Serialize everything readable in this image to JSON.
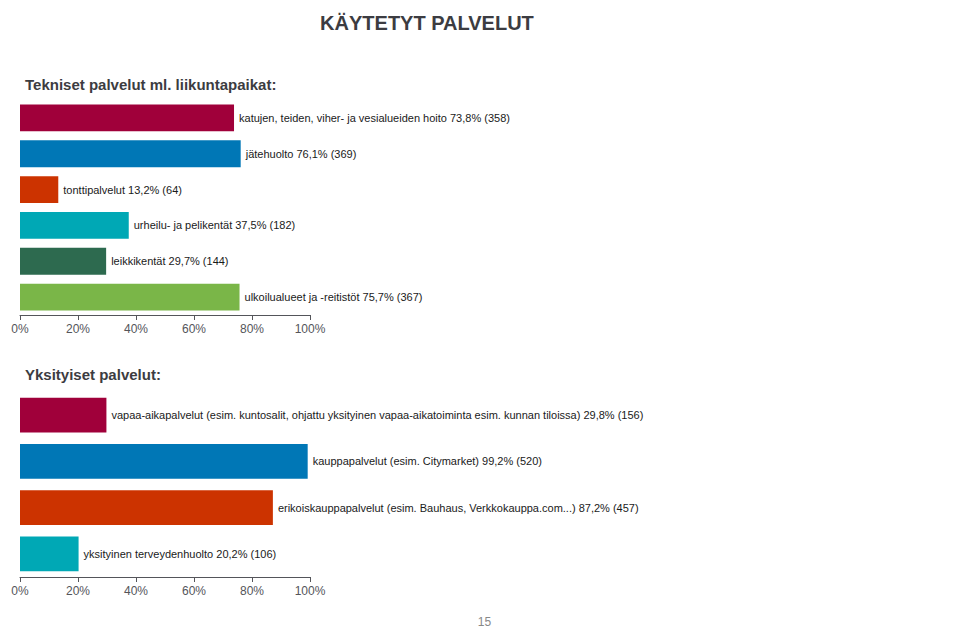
{
  "chart_data": [
    {
      "type": "bar",
      "orientation": "horizontal",
      "title": "KÄYTETYT PALVELUT",
      "subtitle": "Tekniset palvelut ml. liikuntapaikat:",
      "categories": [
        "katujen, teiden, viher- ja vesialueiden hoito 73,8% (358)",
        "jätehuolto 76,1% (369)",
        "tonttipalvelut 13,2% (64)",
        "urheilu- ja pelikentät 37,5% (182)",
        "leikkikentät 29,7% (144)",
        "ulkoilualueet ja -reitistöt 75,7% (367)"
      ],
      "values": [
        73.8,
        76.1,
        13.2,
        37.5,
        29.7,
        75.7
      ],
      "colors": [
        "#a0003a",
        "#0077b6",
        "#cc3300",
        "#00a8b5",
        "#2d6a4f",
        "#7ab648"
      ],
      "xlim": [
        0,
        100
      ],
      "xticks": [
        {
          "value": 0,
          "label": "0%"
        },
        {
          "value": 20,
          "label": "20%"
        },
        {
          "value": 40,
          "label": "40%"
        },
        {
          "value": 60,
          "label": "60%"
        },
        {
          "value": 80,
          "label": "80%"
        },
        {
          "value": 100,
          "label": "100%"
        }
      ],
      "tick_labels": "x",
      "grid": false
    },
    {
      "type": "bar",
      "orientation": "horizontal",
      "subtitle": "Yksityiset palvelut:",
      "categories": [
        "vapaa-aikapalvelut (esim. kuntosalit, ohjattu yksityinen vapaa-aikatoiminta esim. kunnan tiloissa) 29,8% (156)",
        "kauppapalvelut (esim. Citymarket) 99,2% (520)",
        "erikoiskauppapalvelut (esim. Bauhaus, Verkkokauppa.com...) 87,2% (457)",
        "yksityinen terveydenhuolto 20,2% (106)"
      ],
      "values": [
        29.8,
        99.2,
        87.2,
        20.2
      ],
      "colors": [
        "#a0003a",
        "#0077b6",
        "#cc3300",
        "#00a8b5"
      ],
      "xlim": [
        0,
        100
      ],
      "xticks": [
        {
          "value": 0,
          "label": "0%"
        },
        {
          "value": 20,
          "label": "20%"
        },
        {
          "value": 40,
          "label": "40%"
        },
        {
          "value": 60,
          "label": "60%"
        },
        {
          "value": 80,
          "label": "80%"
        },
        {
          "value": 100,
          "label": "100%"
        }
      ],
      "tick_labels": "x",
      "grid": false,
      "annotations": [
        "15"
      ]
    }
  ]
}
